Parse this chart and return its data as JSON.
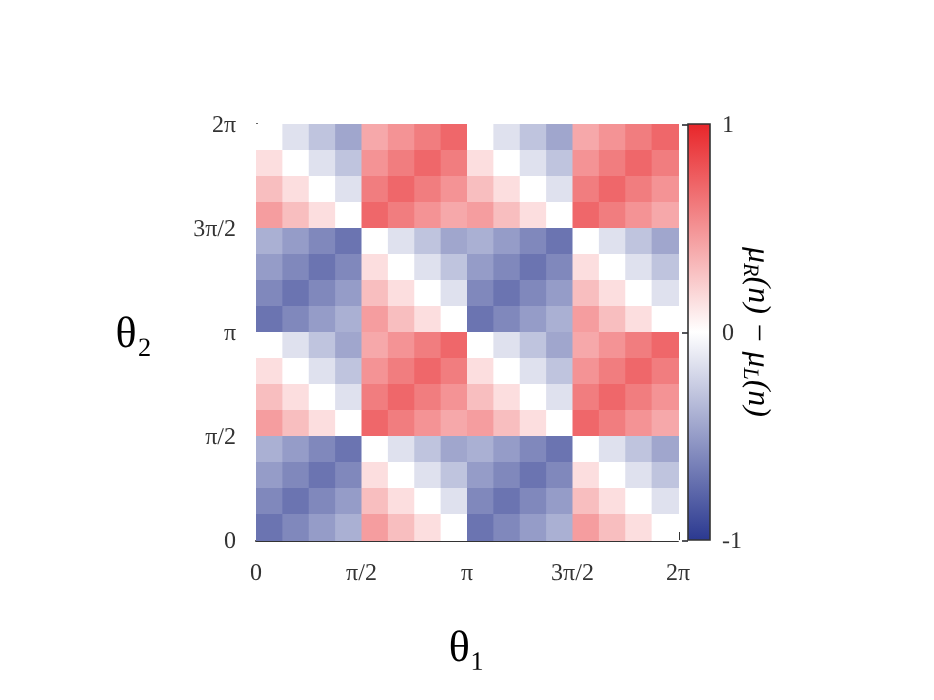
{
  "chart_data": {
    "type": "heatmap",
    "xlabel": "θ₁",
    "ylabel": "θ₂",
    "clabel": "μ$_{R}$(n) − μ$_{L}$(n)",
    "xlim": [
      0,
      6.2832
    ],
    "xticks": [
      {
        "value": 0,
        "label": "0"
      },
      {
        "value": 1.5708,
        "label": "π/2"
      },
      {
        "value": 3.1416,
        "label": "π"
      },
      {
        "value": 4.7124,
        "label": "3π/2"
      },
      {
        "value": 6.2832,
        "label": "2π"
      }
    ],
    "ylim": [
      0,
      6.2832
    ],
    "yticks": [
      {
        "value": 0,
        "label": "0"
      },
      {
        "value": 1.5708,
        "label": "π/2"
      },
      {
        "value": 3.1416,
        "label": "π"
      },
      {
        "value": 4.7124,
        "label": "3π/2"
      },
      {
        "value": 6.2832,
        "label": "2π"
      }
    ],
    "clim": [
      -1,
      1
    ],
    "cticks": [
      -1,
      0,
      1
    ],
    "cells": [
      [
        0,
        -0.15,
        -0.3,
        -0.45,
        0.4,
        0.5,
        0.6,
        0.7,
        0,
        -0.15,
        -0.3,
        -0.45,
        0.4,
        0.5,
        0.6,
        0.7
      ],
      [
        0.15,
        0,
        -0.15,
        -0.3,
        0.5,
        0.6,
        0.7,
        0.6,
        0.15,
        0,
        -0.15,
        -0.3,
        0.5,
        0.6,
        0.7,
        0.6
      ],
      [
        0.3,
        0.15,
        0,
        -0.15,
        0.6,
        0.7,
        0.6,
        0.5,
        0.3,
        0.15,
        0,
        -0.15,
        0.6,
        0.7,
        0.6,
        0.5
      ],
      [
        0.45,
        0.3,
        0.15,
        0,
        0.7,
        0.6,
        0.5,
        0.4,
        0.45,
        0.3,
        0.15,
        0,
        0.7,
        0.6,
        0.5,
        0.4
      ],
      [
        -0.4,
        -0.5,
        -0.6,
        -0.7,
        0,
        -0.15,
        -0.3,
        -0.45,
        -0.4,
        -0.5,
        -0.6,
        -0.7,
        0,
        -0.15,
        -0.3,
        -0.45
      ],
      [
        -0.5,
        -0.6,
        -0.7,
        -0.6,
        0.15,
        0,
        -0.15,
        -0.3,
        -0.5,
        -0.6,
        -0.7,
        -0.6,
        0.15,
        0,
        -0.15,
        -0.3
      ],
      [
        -0.6,
        -0.7,
        -0.6,
        -0.5,
        0.3,
        0.15,
        0,
        -0.15,
        -0.6,
        -0.7,
        -0.6,
        -0.5,
        0.3,
        0.15,
        0,
        -0.15
      ],
      [
        -0.7,
        -0.6,
        -0.5,
        -0.4,
        0.45,
        0.3,
        0.15,
        0,
        -0.7,
        -0.6,
        -0.5,
        -0.4,
        0.45,
        0.3,
        0.15,
        0
      ],
      [
        0,
        -0.15,
        -0.3,
        -0.45,
        0.4,
        0.5,
        0.6,
        0.7,
        0,
        -0.15,
        -0.3,
        -0.45,
        0.4,
        0.5,
        0.6,
        0.7
      ],
      [
        0.15,
        0,
        -0.15,
        -0.3,
        0.5,
        0.6,
        0.7,
        0.6,
        0.15,
        0,
        -0.15,
        -0.3,
        0.5,
        0.6,
        0.7,
        0.6
      ],
      [
        0.3,
        0.15,
        0,
        -0.15,
        0.6,
        0.7,
        0.6,
        0.5,
        0.3,
        0.15,
        0,
        -0.15,
        0.6,
        0.7,
        0.6,
        0.5
      ],
      [
        0.45,
        0.3,
        0.15,
        0,
        0.7,
        0.6,
        0.5,
        0.4,
        0.45,
        0.3,
        0.15,
        0,
        0.7,
        0.6,
        0.5,
        0.4
      ],
      [
        -0.4,
        -0.5,
        -0.6,
        -0.7,
        0,
        -0.15,
        -0.3,
        -0.45,
        -0.4,
        -0.5,
        -0.6,
        -0.7,
        0,
        -0.15,
        -0.3,
        -0.45
      ],
      [
        -0.5,
        -0.6,
        -0.7,
        -0.6,
        0.15,
        0,
        -0.15,
        -0.3,
        -0.5,
        -0.6,
        -0.7,
        -0.6,
        0.15,
        0,
        -0.15,
        -0.3
      ],
      [
        -0.6,
        -0.7,
        -0.6,
        -0.5,
        0.3,
        0.15,
        0,
        -0.15,
        -0.6,
        -0.7,
        -0.6,
        -0.5,
        0.3,
        0.15,
        0,
        -0.15
      ],
      [
        -0.7,
        -0.6,
        -0.5,
        -0.4,
        0.45,
        0.3,
        0.15,
        0,
        -0.7,
        -0.6,
        -0.5,
        -0.4,
        0.45,
        0.3,
        0.15,
        0
      ]
    ]
  }
}
